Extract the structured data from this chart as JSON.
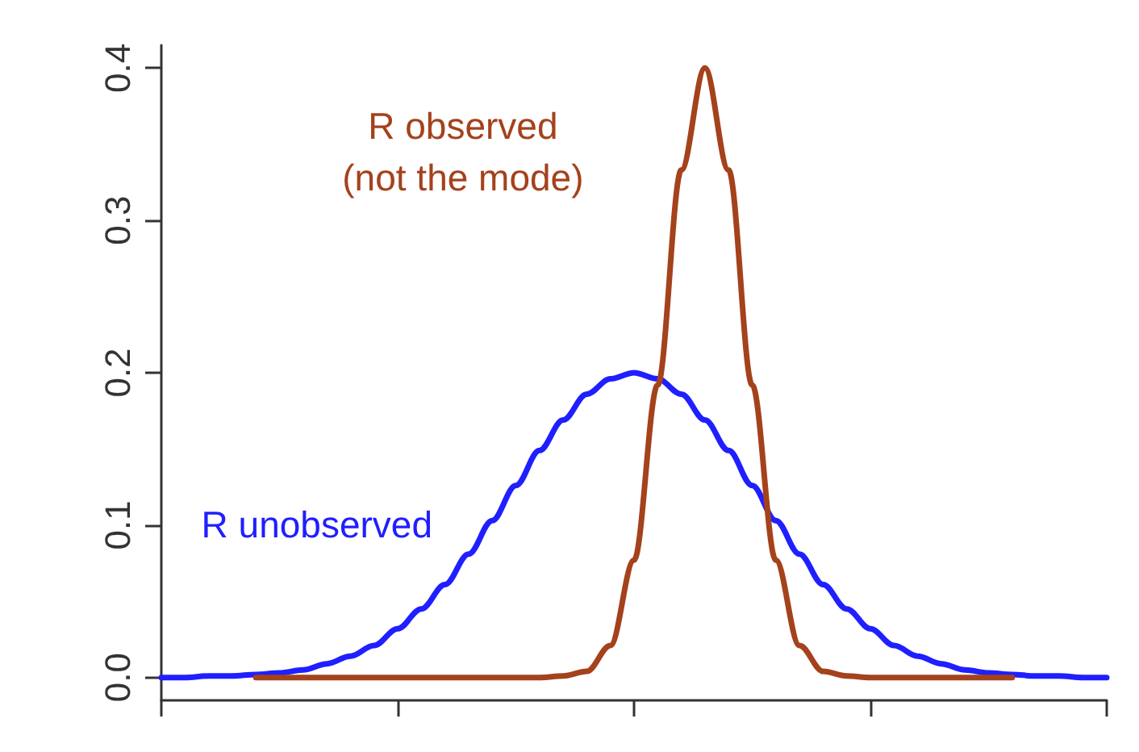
{
  "chart_data": {
    "type": "line",
    "categories": [
      null,
      null,
      null,
      null,
      null,
      null,
      null,
      null,
      null,
      null,
      null,
      null,
      null,
      null,
      null,
      null,
      null,
      null,
      null,
      null,
      null,
      null,
      null,
      null,
      null,
      null,
      null,
      null,
      null,
      null,
      null,
      null,
      null,
      null,
      null,
      null,
      null,
      null,
      null,
      null,
      null
    ],
    "series": [
      {
        "name": "R unobserved",
        "color": "#1f1fff",
        "values": [
          0,
          0,
          0.001,
          0.001,
          0.002,
          0.003,
          0.005,
          0.009,
          0.014,
          0.021,
          0.032,
          0.045,
          0.061,
          0.081,
          0.103,
          0.126,
          0.149,
          0.169,
          0.186,
          0.196,
          0.2,
          0.196,
          0.186,
          0.169,
          0.149,
          0.126,
          0.103,
          0.081,
          0.061,
          0.045,
          0.032,
          0.021,
          0.014,
          0.009,
          0.005,
          0.003,
          0.002,
          0.001,
          0.001,
          0,
          0
        ]
      },
      {
        "name": "R observed\n(not the mode)",
        "color": "#a4421c",
        "values": [
          null,
          null,
          null,
          null,
          0,
          0,
          0,
          0,
          0,
          0,
          0,
          0,
          0,
          0,
          0,
          0,
          0,
          0.001,
          0.004,
          0.021,
          0.077,
          0.192,
          0.333,
          0.4,
          0.333,
          0.192,
          0.077,
          0.021,
          0.004,
          0.001,
          0,
          0,
          0,
          0,
          0,
          0,
          0,
          null,
          null,
          null,
          null
        ]
      }
    ],
    "ylim": [
      -0.015,
      0.415
    ],
    "yticks": [
      {
        "value": 0,
        "label": "0.0"
      },
      {
        "value": 0.1,
        "label": "0.1"
      },
      {
        "value": 0.2,
        "label": "0.2"
      },
      {
        "value": 0.3,
        "label": "0.3"
      },
      {
        "value": 0.4,
        "label": "0.4"
      }
    ],
    "tick_labels": "y",
    "grid": false,
    "legend": false,
    "marker": "none",
    "line_style": "solid"
  }
}
